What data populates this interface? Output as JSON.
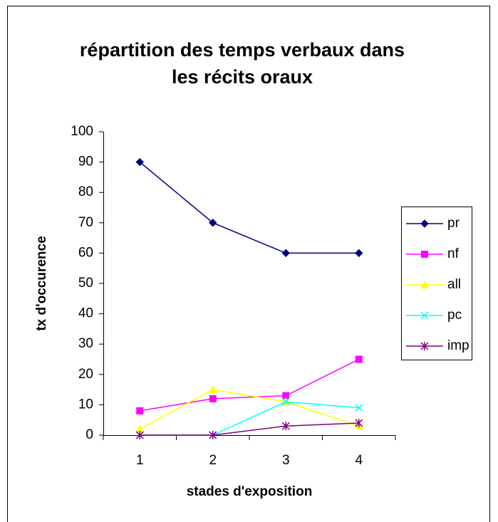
{
  "chart_data": {
    "type": "line",
    "title": [
      "répartition des temps verbaux dans",
      "les récits oraux"
    ],
    "x_label": "stades d'exposition",
    "y_label": "tx d'occurence",
    "categories": [
      "1",
      "2",
      "3",
      "4"
    ],
    "series": [
      {
        "name": "pr",
        "color": "#000080",
        "marker": "diamond",
        "values": [
          90,
          70,
          60,
          60
        ]
      },
      {
        "name": "nf",
        "color": "#ff00ff",
        "marker": "square",
        "values": [
          8,
          12,
          13,
          25
        ]
      },
      {
        "name": "all",
        "color": "#ffff00",
        "marker": "triangle",
        "values": [
          2,
          15,
          11,
          3
        ]
      },
      {
        "name": "pc",
        "color": "#00ffff",
        "marker": "x",
        "values": [
          0,
          0,
          11,
          9
        ]
      },
      {
        "name": "imp",
        "color": "#800080",
        "marker": "star",
        "values": [
          0,
          0,
          3,
          4
        ]
      }
    ],
    "ylim": [
      0,
      100
    ],
    "yticks": [
      0,
      10,
      20,
      30,
      40,
      50,
      60,
      70,
      80,
      90,
      100
    ],
    "grid": false,
    "legend": "right"
  }
}
